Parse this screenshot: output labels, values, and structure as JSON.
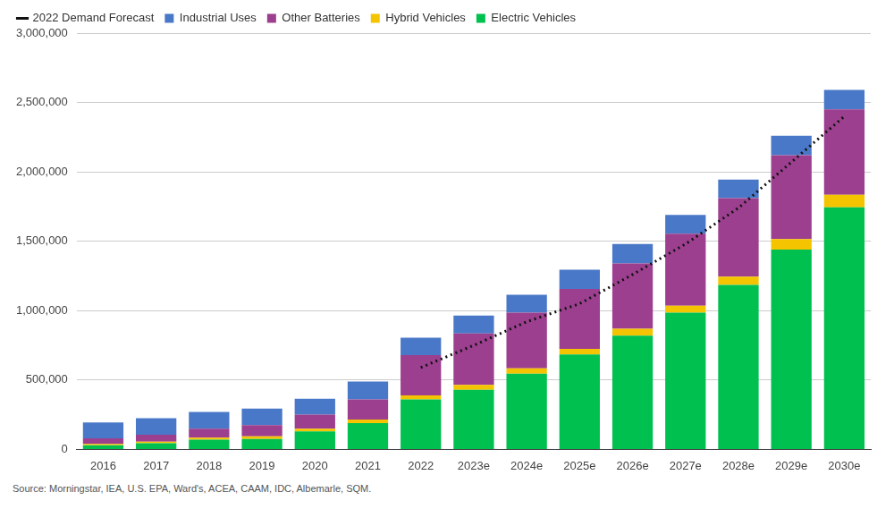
{
  "chart_data": {
    "type": "bar",
    "stacked": true,
    "grid": true,
    "legend": "top-left",
    "source": "Source: Morningstar, IEA, U.S. EPA, Ward's, ACEA, CAAM, IDC, Albemarle, SQM.",
    "categories": [
      "2016",
      "2017",
      "2018",
      "2019",
      "2020",
      "2021",
      "2022",
      "2023e",
      "2024e",
      "2025e",
      "2026e",
      "2027e",
      "2028e",
      "2029e",
      "2030e"
    ],
    "ylim": [
      0,
      3000000
    ],
    "yticks": [
      0,
      {
        "value": 500000,
        "label": "500,000"
      },
      {
        "value": 1000000,
        "label": "1,000,000"
      },
      {
        "value": 1500000,
        "label": "1,500,000"
      },
      {
        "value": 2000000,
        "label": "2,000,000"
      },
      {
        "value": 2500000,
        "label": "2,500,000"
      },
      {
        "value": 3000000,
        "label": "3,000,000"
      }
    ],
    "series": [
      {
        "name": "2022 Demand Forecast",
        "type": "line",
        "line_style": "dotted",
        "color": "#111111",
        "values": [
          null,
          null,
          null,
          null,
          null,
          null,
          590000,
          750000,
          920000,
          1050000,
          1260000,
          1480000,
          1740000,
          2070000,
          2400000
        ]
      },
      {
        "name": "Industrial Uses",
        "type": "bar",
        "color": "#4a78c8",
        "values": [
          115000,
          120000,
          120000,
          120000,
          115000,
          130000,
          125000,
          130000,
          130000,
          138000,
          140000,
          135000,
          135000,
          140000,
          140000
        ]
      },
      {
        "name": "Other Batteries",
        "type": "bar",
        "color": "#9b3f8e",
        "values": [
          40000,
          50000,
          65000,
          80000,
          100000,
          145000,
          290000,
          370000,
          400000,
          432000,
          470000,
          520000,
          565000,
          605000,
          615000
        ]
      },
      {
        "name": "Hybrid Vehicles",
        "type": "bar",
        "color": "#f5c400",
        "values": [
          10000,
          10000,
          15000,
          20000,
          20000,
          25000,
          30000,
          35000,
          40000,
          40000,
          50000,
          50000,
          60000,
          75000,
          90000
        ]
      },
      {
        "name": "Electric Vehicles",
        "type": "bar",
        "color": "#00c050",
        "values": [
          30000,
          45000,
          70000,
          75000,
          130000,
          190000,
          360000,
          430000,
          545000,
          685000,
          820000,
          985000,
          1185000,
          1440000,
          1745000
        ]
      }
    ]
  }
}
